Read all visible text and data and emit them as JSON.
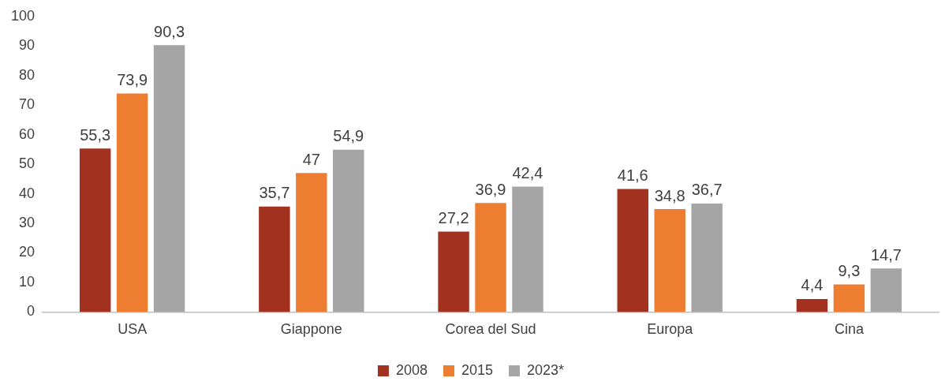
{
  "chart_data": {
    "type": "bar",
    "categories": [
      "USA",
      "Giappone",
      "Corea del Sud",
      "Europa",
      "Cina"
    ],
    "series": [
      {
        "name": "2008",
        "color": "#a33120",
        "values": [
          55.3,
          35.7,
          27.2,
          41.6,
          4.4
        ],
        "value_labels": [
          "55,3",
          "35,7",
          "27,2",
          "41,6",
          "4,4"
        ]
      },
      {
        "name": "2015",
        "color": "#ed7d31",
        "values": [
          73.9,
          47,
          36.9,
          34.8,
          9.3
        ],
        "value_labels": [
          "73,9",
          "47",
          "36,9",
          "34,8",
          "9,3"
        ]
      },
      {
        "name": "2023*",
        "color": "#a5a5a5",
        "values": [
          90.3,
          54.9,
          42.4,
          36.7,
          14.7
        ],
        "value_labels": [
          "90,3",
          "54,9",
          "42,4",
          "36,7",
          "14,7"
        ]
      }
    ],
    "ylim": [
      0,
      100
    ],
    "yticks": [
      0,
      10,
      20,
      30,
      40,
      50,
      60,
      70,
      80,
      90,
      100
    ],
    "grid": false,
    "legend": "bottom"
  }
}
